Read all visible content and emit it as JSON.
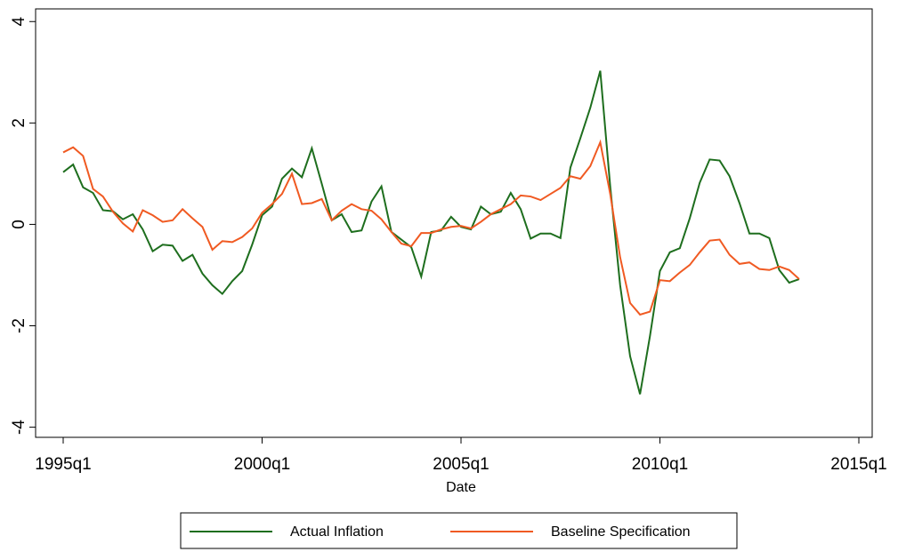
{
  "chart_data": {
    "type": "line",
    "x_label": "Date",
    "x": [
      "1995q1",
      "1995q2",
      "1995q3",
      "1995q4",
      "1996q1",
      "1996q2",
      "1996q3",
      "1996q4",
      "1997q1",
      "1997q2",
      "1997q3",
      "1997q4",
      "1998q1",
      "1998q2",
      "1998q3",
      "1998q4",
      "1999q1",
      "1999q2",
      "1999q3",
      "1999q4",
      "2000q1",
      "2000q2",
      "2000q3",
      "2000q4",
      "2001q1",
      "2001q2",
      "2001q3",
      "2001q4",
      "2002q1",
      "2002q2",
      "2002q3",
      "2002q4",
      "2003q1",
      "2003q2",
      "2003q3",
      "2003q4",
      "2004q1",
      "2004q2",
      "2004q3",
      "2004q4",
      "2005q1",
      "2005q2",
      "2005q3",
      "2005q4",
      "2006q1",
      "2006q2",
      "2006q3",
      "2006q4",
      "2007q1",
      "2007q2",
      "2007q3",
      "2007q4",
      "2008q1",
      "2008q2",
      "2008q3",
      "2008q4",
      "2009q1",
      "2009q2",
      "2009q3",
      "2009q4",
      "2010q1",
      "2010q2",
      "2010q3",
      "2010q4",
      "2011q1",
      "2011q2",
      "2011q3",
      "2011q4",
      "2012q1",
      "2012q2",
      "2012q3",
      "2012q4",
      "2013q1",
      "2013q2",
      "2013q3"
    ],
    "series": [
      {
        "name": "Actual Inflation",
        "color": "#1e6e1e",
        "values": [
          1.03,
          1.18,
          0.73,
          0.62,
          0.28,
          0.26,
          0.1,
          0.2,
          -0.1,
          -0.53,
          -0.4,
          -0.42,
          -0.72,
          -0.6,
          -0.97,
          -1.2,
          -1.37,
          -1.12,
          -0.92,
          -0.4,
          0.18,
          0.35,
          0.9,
          1.1,
          0.93,
          1.5,
          0.8,
          0.08,
          0.2,
          -0.15,
          -0.12,
          0.45,
          0.75,
          -0.15,
          -0.3,
          -0.45,
          -1.03,
          -0.15,
          -0.12,
          0.15,
          -0.05,
          -0.1,
          0.35,
          0.2,
          0.25,
          0.62,
          0.3,
          -0.28,
          -0.18,
          -0.18,
          -0.27,
          1.12,
          1.7,
          2.3,
          3.03,
          0.75,
          -1.2,
          -2.6,
          -3.35,
          -2.2,
          -0.92,
          -0.55,
          -0.47,
          0.12,
          0.82,
          1.28,
          1.26,
          0.95,
          0.42,
          -0.18,
          -0.18,
          -0.27,
          -0.9,
          -1.15,
          -1.08
        ]
      },
      {
        "name": "Baseline Specification",
        "color": "#f05a22",
        "values": [
          1.42,
          1.52,
          1.35,
          0.7,
          0.55,
          0.25,
          0.02,
          -0.14,
          0.28,
          0.18,
          0.05,
          0.08,
          0.3,
          0.12,
          -0.05,
          -0.5,
          -0.33,
          -0.35,
          -0.25,
          -0.08,
          0.23,
          0.4,
          0.6,
          1.0,
          0.4,
          0.42,
          0.5,
          0.08,
          0.27,
          0.4,
          0.3,
          0.27,
          0.1,
          -0.15,
          -0.38,
          -0.43,
          -0.17,
          -0.17,
          -0.1,
          -0.05,
          -0.03,
          -0.08,
          0.05,
          0.2,
          0.3,
          0.4,
          0.57,
          0.55,
          0.48,
          0.6,
          0.72,
          0.95,
          0.9,
          1.15,
          1.62,
          0.6,
          -0.65,
          -1.55,
          -1.78,
          -1.72,
          -1.1,
          -1.12,
          -0.95,
          -0.8,
          -0.55,
          -0.32,
          -0.3,
          -0.6,
          -0.78,
          -0.75,
          -0.88,
          -0.9,
          -0.83,
          -0.9,
          -1.08
        ]
      }
    ],
    "xticks": [
      "1995q1",
      "2000q1",
      "2005q1",
      "2010q1",
      "2015q1"
    ],
    "ylim": [
      -4.2,
      4.25
    ],
    "yticks": [
      -4,
      -2,
      0,
      2,
      4
    ],
    "legend": "bottom"
  }
}
